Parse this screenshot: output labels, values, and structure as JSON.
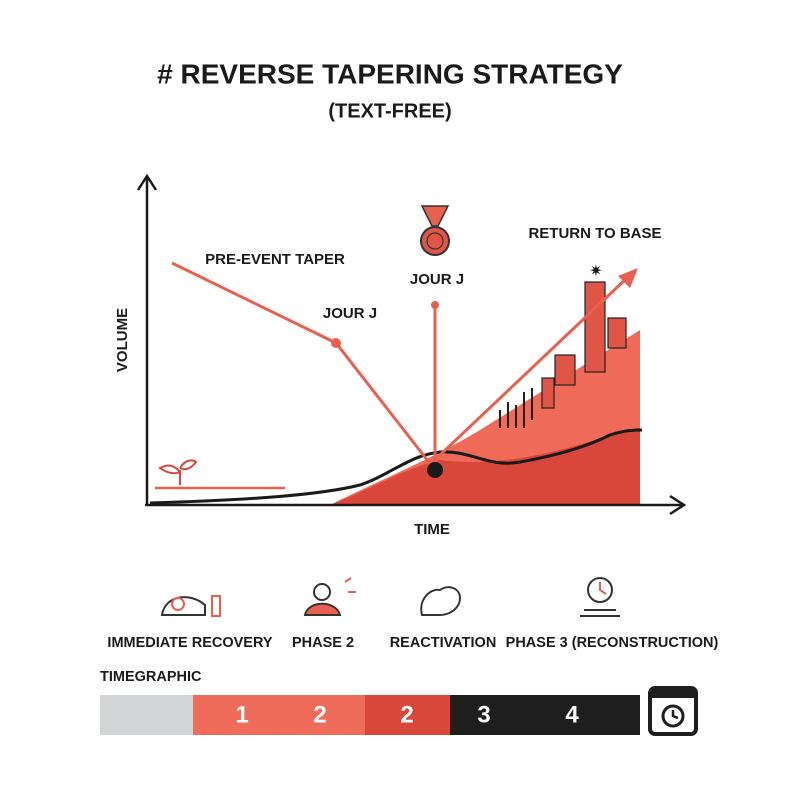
{
  "header": {
    "title": "# REVERSE TAPERING STRATEGY",
    "subtitle": "(TEXT-FREE)"
  },
  "diagram": {
    "y_axis_label": "VOLUME",
    "x_axis_label": "TIME",
    "annotations": [
      "PRE-EVENT TAPER",
      "JOUR J",
      "JOUR J",
      "RETURN TO BASE"
    ]
  },
  "phases": [
    "IMMEDIATE RECOVERY",
    "PHASE 2",
    "REACTIVATION",
    "PHASE 3 (RECONSTRUCTION)"
  ],
  "timeline": {
    "label": "TIMEGRAPHIC",
    "segments": [
      "1",
      "2",
      "2",
      "3",
      "4"
    ]
  }
}
